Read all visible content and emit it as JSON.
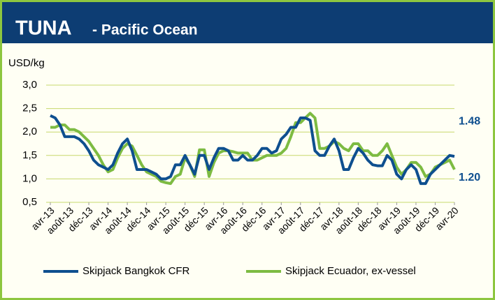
{
  "chart_data": {
    "type": "line",
    "title": "TUNA",
    "subtitle": "- Pacific Ocean",
    "y_axis_label": "USD/kg",
    "categories": [
      "avr-13",
      null,
      null,
      null,
      "août-13",
      null,
      null,
      null,
      "déc-13",
      null,
      null,
      null,
      "avr-14",
      null,
      null,
      null,
      "août-14",
      null,
      null,
      null,
      "déc-14",
      null,
      null,
      null,
      "avr-15",
      null,
      null,
      null,
      "août-15",
      null,
      null,
      null,
      "déc-15",
      null,
      null,
      null,
      "avr-16",
      null,
      null,
      null,
      "août-16",
      null,
      null,
      null,
      "déc-16",
      null,
      null,
      null,
      "avr-17",
      null,
      null,
      null,
      "août-17",
      null,
      null,
      null,
      "déc-17",
      null,
      null,
      null,
      "avr-18",
      null,
      null,
      null,
      "août-18",
      null,
      null,
      null,
      "déc-18",
      null,
      null,
      null,
      "avr-19",
      null,
      null,
      null,
      "août-19",
      null,
      null,
      null,
      "déc-19",
      null,
      null,
      null,
      "avr-20"
    ],
    "series": [
      {
        "name": "Skipjack Bangkok CFR",
        "color": "#0e4f8f",
        "values": [
          2.35,
          2.3,
          2.15,
          1.9,
          1.9,
          1.9,
          1.85,
          1.75,
          1.6,
          1.4,
          1.3,
          1.25,
          1.2,
          1.3,
          1.55,
          1.75,
          1.85,
          1.6,
          1.2,
          1.2,
          1.2,
          1.15,
          1.1,
          1.0,
          1.0,
          1.05,
          1.3,
          1.3,
          1.5,
          1.3,
          1.1,
          1.5,
          1.5,
          1.2,
          1.45,
          1.65,
          1.65,
          1.6,
          1.4,
          1.4,
          1.5,
          1.4,
          1.4,
          1.5,
          1.65,
          1.65,
          1.55,
          1.6,
          1.85,
          1.95,
          2.1,
          2.1,
          2.3,
          2.3,
          2.25,
          1.6,
          1.5,
          1.5,
          1.7,
          1.85,
          1.6,
          1.2,
          1.2,
          1.45,
          1.65,
          1.55,
          1.4,
          1.3,
          1.28,
          1.28,
          1.5,
          1.4,
          1.1,
          1.0,
          1.2,
          1.3,
          1.2,
          0.9,
          0.9,
          1.1,
          1.2,
          1.3,
          1.4,
          1.5,
          1.48
        ]
      },
      {
        "name": "Skipjack Ecuador, ex-vessel",
        "color": "#7dbb42",
        "values": [
          2.1,
          2.1,
          2.15,
          2.15,
          2.05,
          2.05,
          2.0,
          1.9,
          1.8,
          1.65,
          1.5,
          1.3,
          1.15,
          1.2,
          1.45,
          1.65,
          1.75,
          1.7,
          1.5,
          1.3,
          1.15,
          1.1,
          1.05,
          0.95,
          0.92,
          0.9,
          1.05,
          1.1,
          1.45,
          1.3,
          1.05,
          1.62,
          1.62,
          1.05,
          1.35,
          1.55,
          1.6,
          1.6,
          1.58,
          1.55,
          1.55,
          1.55,
          1.4,
          1.4,
          1.45,
          1.5,
          1.5,
          1.5,
          1.55,
          1.65,
          1.9,
          2.2,
          2.2,
          2.3,
          2.4,
          2.3,
          1.65,
          1.65,
          1.7,
          1.8,
          1.75,
          1.65,
          1.6,
          1.75,
          1.75,
          1.6,
          1.6,
          1.5,
          1.5,
          1.6,
          1.75,
          1.5,
          1.25,
          1.1,
          1.2,
          1.35,
          1.35,
          1.25,
          1.05,
          1.1,
          1.25,
          1.3,
          1.35,
          1.4,
          1.2
        ]
      }
    ],
    "annotations": [
      {
        "label": "1.48",
        "value": 1.48,
        "color": "#0e4f8f"
      },
      {
        "label": "1.20",
        "value": 1.2,
        "color": "#0e4f8f"
      }
    ],
    "ylim": [
      0.5,
      3.0
    ],
    "yticks": [
      {
        "value": 0.5,
        "label": "0,5"
      },
      {
        "value": 1.0,
        "label": "1,0"
      },
      {
        "value": 1.5,
        "label": "1,5"
      },
      {
        "value": 2.0,
        "label": "2,0"
      },
      {
        "value": 2.5,
        "label": "2,5"
      },
      {
        "value": 3.0,
        "label": "3,0"
      }
    ],
    "grid": true,
    "legend": "bottom"
  }
}
